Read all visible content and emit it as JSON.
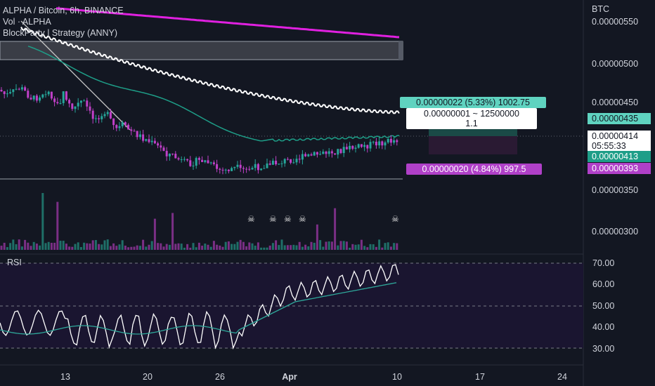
{
  "legend": {
    "title": "ALPHA / Bitcoin, 6h, BINANCE",
    "vol": "Vol · ALPHA",
    "strategy": "BlockParty | Strategy (ANNY)"
  },
  "price_axis": {
    "currency": "BTC",
    "ticks": [
      "0.00000550",
      "0.00000500",
      "0.00000450",
      "0.00000350",
      "0.00000300"
    ]
  },
  "price_tags": {
    "upper_target": "0.00000435",
    "last_price": "0.00000414",
    "countdown": "05:55:33",
    "entry": "0.00000413",
    "stop": "0.00000393"
  },
  "position_tool": {
    "profit_label": "0.00000022 (5.33%) 1002.75",
    "qty_label": "0.00000001 ~ 12500000",
    "ratio_label": "1.1",
    "loss_label": "0.00000020 (4.84%) 997.5"
  },
  "rsi": {
    "label": "RSI",
    "ticks": [
      "70.00",
      "60.00",
      "50.00",
      "40.00",
      "30.00"
    ]
  },
  "time_axis": {
    "labels": [
      "13",
      "20",
      "26",
      "Apr",
      "10",
      "17",
      "24"
    ]
  },
  "colors": {
    "background": "#131722",
    "up_candle": "#26a69a",
    "down_candle": "#c040c8",
    "ma_magenta": "#e020e0",
    "ma_white": "#ffffff",
    "ma_teal": "#1e9e88",
    "profit_box": "#5fd3c0",
    "loss_box": "#b040c8"
  },
  "skull_icon": "skull-icon"
}
